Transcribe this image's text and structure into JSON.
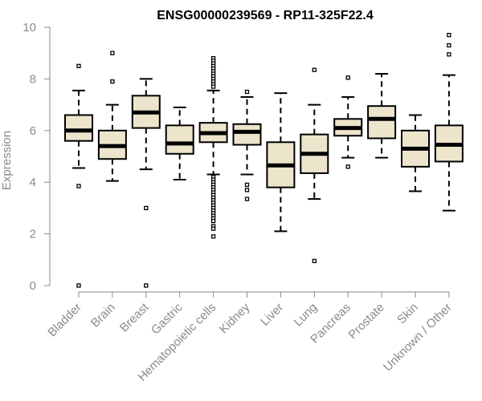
{
  "chart_data": {
    "type": "box",
    "title": "ENSG00000239569 - RP11-325F22.4",
    "xlabel": "",
    "ylabel": "Expression",
    "ylim": [
      0,
      10
    ],
    "yticks": [
      0,
      2,
      4,
      6,
      8,
      10
    ],
    "grid": false,
    "box_fill": "#ede4cc",
    "box_stroke": "#000000",
    "axis_color": "#8a8a8a",
    "categories": [
      "Bladder",
      "Brain",
      "Breast",
      "Gastric",
      "Hematopoietic cells",
      "Kidney",
      "Liver",
      "Lung",
      "Pancreas",
      "Prostate",
      "Skin",
      "Unknown / Other"
    ],
    "boxes": [
      {
        "name": "Bladder",
        "whisker_low": 4.55,
        "q1": 5.6,
        "median": 6.0,
        "q3": 6.6,
        "whisker_high": 7.55,
        "outliers": [
          8.5,
          3.85,
          0.0
        ]
      },
      {
        "name": "Brain",
        "whisker_low": 4.05,
        "q1": 4.9,
        "median": 5.4,
        "q3": 6.0,
        "whisker_high": 7.0,
        "outliers": [
          9.0,
          7.9
        ]
      },
      {
        "name": "Breast",
        "whisker_low": 4.5,
        "q1": 6.1,
        "median": 6.7,
        "q3": 7.35,
        "whisker_high": 8.0,
        "outliers": [
          3.0,
          0.0
        ]
      },
      {
        "name": "Gastric",
        "whisker_low": 4.1,
        "q1": 5.1,
        "median": 5.5,
        "q3": 6.2,
        "whisker_high": 6.9,
        "outliers": []
      },
      {
        "name": "Hematopoietic cells",
        "whisker_low": 4.3,
        "q1": 5.55,
        "median": 5.9,
        "q3": 6.3,
        "whisker_high": 7.55,
        "outliers": [
          8.8,
          8.7,
          8.6,
          8.5,
          8.4,
          8.3,
          8.2,
          8.1,
          8.0,
          7.9,
          7.8,
          7.7,
          4.2,
          4.1,
          4.0,
          3.9,
          3.8,
          3.7,
          3.6,
          3.5,
          3.4,
          3.3,
          3.2,
          3.1,
          3.0,
          2.9,
          2.8,
          2.7,
          2.6,
          2.5,
          2.3,
          2.2,
          1.9
        ]
      },
      {
        "name": "Kidney",
        "whisker_low": 4.3,
        "q1": 5.45,
        "median": 5.95,
        "q3": 6.25,
        "whisker_high": 7.3,
        "outliers": [
          7.5,
          3.9,
          3.7,
          3.35
        ]
      },
      {
        "name": "Liver",
        "whisker_low": 2.1,
        "q1": 3.8,
        "median": 4.65,
        "q3": 5.55,
        "whisker_high": 7.45,
        "outliers": []
      },
      {
        "name": "Lung",
        "whisker_low": 3.35,
        "q1": 4.35,
        "median": 5.1,
        "q3": 5.85,
        "whisker_high": 7.0,
        "outliers": [
          8.35,
          0.95
        ]
      },
      {
        "name": "Pancreas",
        "whisker_low": 4.95,
        "q1": 5.8,
        "median": 6.1,
        "q3": 6.45,
        "whisker_high": 7.3,
        "outliers": [
          8.05,
          4.6
        ]
      },
      {
        "name": "Prostate",
        "whisker_low": 4.95,
        "q1": 5.7,
        "median": 6.45,
        "q3": 6.95,
        "whisker_high": 8.2,
        "outliers": []
      },
      {
        "name": "Skin",
        "whisker_low": 3.65,
        "q1": 4.6,
        "median": 5.3,
        "q3": 6.0,
        "whisker_high": 6.6,
        "outliers": []
      },
      {
        "name": "Unknown / Other",
        "whisker_low": 2.9,
        "q1": 4.8,
        "median": 5.45,
        "q3": 6.2,
        "whisker_high": 8.15,
        "outliers": [
          9.7,
          9.3,
          8.95
        ]
      }
    ]
  }
}
